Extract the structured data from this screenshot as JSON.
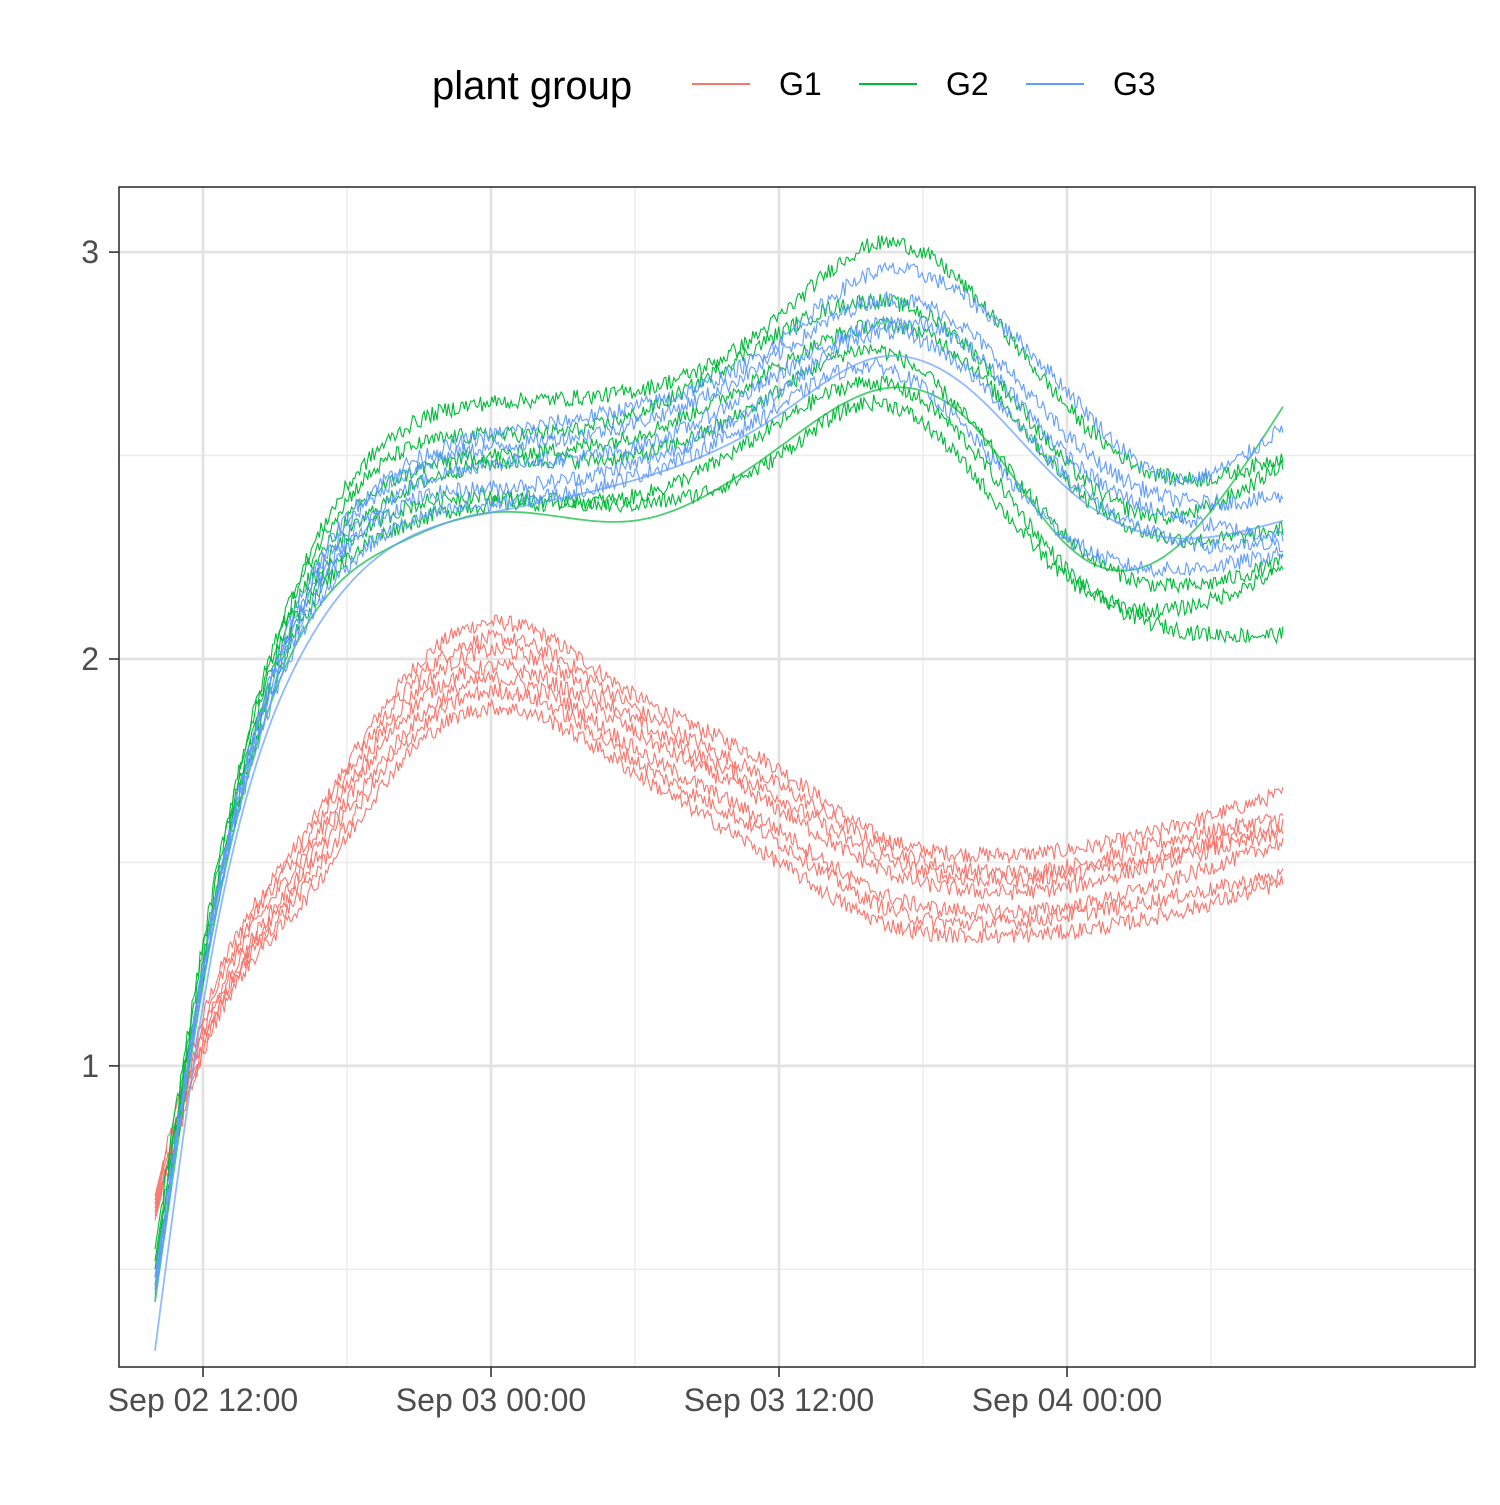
{
  "chart_data": {
    "type": "line",
    "title": "",
    "xlabel": "",
    "ylabel": "",
    "x_axis": {
      "scale": "datetime",
      "range": [
        "2018-09-02T08:30",
        "2018-09-04T17:00"
      ],
      "ticks": [
        "2018-09-02T12:00",
        "2018-09-03T00:00",
        "2018-09-03T12:00",
        "2018-09-04T00:00"
      ],
      "tick_labels": [
        "Sep 02 12:00",
        "Sep 03 00:00",
        "Sep 03 12:00",
        "Sep 04 00:00"
      ],
      "minor_ticks": [
        "2018-09-02T18:00",
        "2018-09-03T06:00",
        "2018-09-03T18:00",
        "2018-09-04T06:00"
      ]
    },
    "y_axis": {
      "range": [
        0.26,
        3.16
      ],
      "ticks": [
        1,
        2,
        3
      ],
      "tick_labels": [
        "1",
        "2",
        "3"
      ],
      "minor_ticks": [
        0.5,
        1.5,
        2.5
      ]
    },
    "grid": true,
    "legend": {
      "title": "plant group",
      "position": "top",
      "entries": [
        "G1",
        "G2",
        "G3"
      ]
    },
    "colors": {
      "G1": "#F8766D",
      "G2": "#00BA38",
      "G3": "#619CFF"
    },
    "time_points": [
      "2018-09-02T10:00",
      "2018-09-02T12:00",
      "2018-09-02T16:00",
      "2018-09-02T20:00",
      "2018-09-03T00:00",
      "2018-09-03T06:00",
      "2018-09-03T12:00",
      "2018-09-03T16:00",
      "2018-09-03T20:00",
      "2018-09-04T00:00",
      "2018-09-04T04:00",
      "2018-09-04T09:00"
    ],
    "series": [
      {
        "name": "G1",
        "noisy": true,
        "values": [
          0.68,
          1.12,
          1.55,
          1.92,
          2.09,
          1.91,
          1.73,
          1.57,
          1.52,
          1.53,
          1.58,
          1.67
        ]
      },
      {
        "name": "G1",
        "noisy": true,
        "values": [
          0.67,
          1.1,
          1.53,
          1.89,
          2.05,
          1.88,
          1.69,
          1.55,
          1.48,
          1.49,
          1.55,
          1.61
        ]
      },
      {
        "name": "G1",
        "noisy": true,
        "values": [
          0.66,
          1.08,
          1.5,
          1.86,
          2.02,
          1.85,
          1.66,
          1.52,
          1.46,
          1.47,
          1.52,
          1.59
        ]
      },
      {
        "name": "G1",
        "noisy": true,
        "values": [
          0.65,
          1.06,
          1.47,
          1.83,
          1.98,
          1.82,
          1.63,
          1.49,
          1.43,
          1.44,
          1.5,
          1.57
        ]
      },
      {
        "name": "G1",
        "noisy": true,
        "values": [
          0.64,
          1.05,
          1.45,
          1.79,
          1.95,
          1.78,
          1.58,
          1.43,
          1.38,
          1.39,
          1.45,
          1.55
        ]
      },
      {
        "name": "G1",
        "noisy": true,
        "values": [
          0.63,
          1.04,
          1.42,
          1.76,
          1.92,
          1.75,
          1.55,
          1.4,
          1.35,
          1.37,
          1.41,
          1.47
        ]
      },
      {
        "name": "G1",
        "noisy": true,
        "values": [
          0.62,
          1.03,
          1.39,
          1.73,
          1.88,
          1.72,
          1.5,
          1.36,
          1.32,
          1.33,
          1.37,
          1.45
        ]
      },
      {
        "name": "G2",
        "noisy": true,
        "values": [
          0.55,
          1.3,
          2.2,
          2.55,
          2.63,
          2.66,
          2.84,
          3.02,
          2.9,
          2.62,
          2.45,
          2.5
        ]
      },
      {
        "name": "G2",
        "noisy": true,
        "values": [
          0.52,
          1.28,
          2.18,
          2.5,
          2.55,
          2.6,
          2.8,
          2.88,
          2.76,
          2.48,
          2.35,
          2.48
        ]
      },
      {
        "name": "G2",
        "noisy": true,
        "values": [
          0.5,
          1.26,
          2.15,
          2.44,
          2.5,
          2.55,
          2.72,
          2.82,
          2.72,
          2.44,
          2.3,
          2.32
        ]
      },
      {
        "name": "G2",
        "noisy": true,
        "values": [
          0.48,
          1.25,
          2.12,
          2.4,
          2.48,
          2.5,
          2.66,
          2.76,
          2.58,
          2.3,
          2.18,
          2.24
        ]
      },
      {
        "name": "G2",
        "noisy": true,
        "values": [
          0.46,
          1.24,
          2.1,
          2.36,
          2.4,
          2.4,
          2.58,
          2.68,
          2.52,
          2.22,
          2.08,
          2.06
        ]
      },
      {
        "name": "G2",
        "noisy": true,
        "values": [
          0.45,
          1.22,
          2.08,
          2.32,
          2.38,
          2.38,
          2.5,
          2.63,
          2.46,
          2.2,
          2.12,
          2.22
        ]
      },
      {
        "name": "G2",
        "noisy": false,
        "values": [
          0.42,
          1.2,
          2.05,
          2.28,
          2.36,
          2.34,
          2.52,
          2.66,
          2.58,
          2.28,
          2.25,
          2.62
        ]
      },
      {
        "name": "G3",
        "noisy": true,
        "values": [
          0.48,
          1.24,
          2.14,
          2.46,
          2.55,
          2.62,
          2.78,
          2.95,
          2.88,
          2.66,
          2.45,
          2.57
        ]
      },
      {
        "name": "G3",
        "noisy": true,
        "values": [
          0.46,
          1.24,
          2.12,
          2.44,
          2.52,
          2.58,
          2.75,
          2.88,
          2.8,
          2.55,
          2.4,
          2.4
        ]
      },
      {
        "name": "G3",
        "noisy": true,
        "values": [
          0.45,
          1.23,
          2.1,
          2.4,
          2.48,
          2.52,
          2.7,
          2.82,
          2.76,
          2.5,
          2.36,
          2.3
        ]
      },
      {
        "name": "G3",
        "noisy": true,
        "values": [
          0.44,
          1.22,
          2.08,
          2.37,
          2.42,
          2.48,
          2.66,
          2.8,
          2.7,
          2.45,
          2.3,
          2.28
        ]
      },
      {
        "name": "G3",
        "noisy": true,
        "values": [
          0.43,
          1.21,
          2.05,
          2.32,
          2.38,
          2.45,
          2.62,
          2.72,
          2.55,
          2.3,
          2.22,
          2.26
        ]
      },
      {
        "name": "G3",
        "noisy": false,
        "values": [
          0.3,
          1.15,
          2.0,
          2.28,
          2.36,
          2.44,
          2.6,
          2.74,
          2.66,
          2.42,
          2.3,
          2.34
        ]
      }
    ]
  }
}
